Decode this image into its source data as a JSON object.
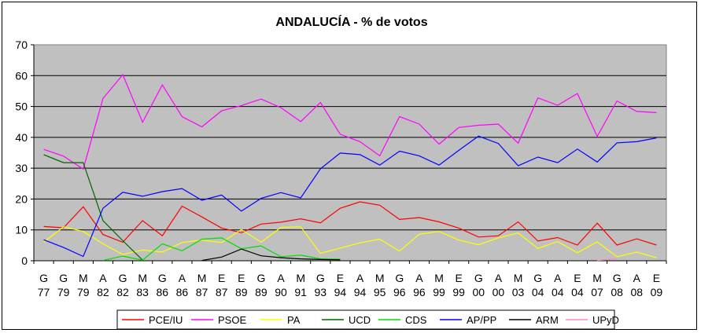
{
  "chart_data": {
    "type": "line",
    "title": "ANDALUCÍA - % de votos",
    "xlabel": "",
    "ylabel": "",
    "ylim": [
      0,
      70
    ],
    "yticks": [
      0,
      10,
      20,
      30,
      40,
      50,
      60,
      70
    ],
    "grid": true,
    "background": "#c0c0c0",
    "legend_position": "bottom",
    "categories": [
      {
        "letter": "G",
        "year": "77"
      },
      {
        "letter": "G",
        "year": "79"
      },
      {
        "letter": "M",
        "year": "79"
      },
      {
        "letter": "A",
        "year": "82"
      },
      {
        "letter": "G",
        "year": "82"
      },
      {
        "letter": "M",
        "year": "83"
      },
      {
        "letter": "G",
        "year": "86"
      },
      {
        "letter": "A",
        "year": "86"
      },
      {
        "letter": "M",
        "year": "87"
      },
      {
        "letter": "E",
        "year": "87"
      },
      {
        "letter": "E",
        "year": "89"
      },
      {
        "letter": "G",
        "year": "89"
      },
      {
        "letter": "A",
        "year": "90"
      },
      {
        "letter": "M",
        "year": "91"
      },
      {
        "letter": "G",
        "year": "93"
      },
      {
        "letter": "E",
        "year": "94"
      },
      {
        "letter": "A",
        "year": "94"
      },
      {
        "letter": "M",
        "year": "95"
      },
      {
        "letter": "G",
        "year": "96"
      },
      {
        "letter": "A",
        "year": "96"
      },
      {
        "letter": "M",
        "year": "99"
      },
      {
        "letter": "E",
        "year": "99"
      },
      {
        "letter": "G",
        "year": "00"
      },
      {
        "letter": "A",
        "year": "00"
      },
      {
        "letter": "M",
        "year": "03"
      },
      {
        "letter": "G",
        "year": "04"
      },
      {
        "letter": "A",
        "year": "04"
      },
      {
        "letter": "E",
        "year": "04"
      },
      {
        "letter": "M",
        "year": "07"
      },
      {
        "letter": "G",
        "year": "08"
      },
      {
        "letter": "A",
        "year": "08"
      },
      {
        "letter": "E",
        "year": "09"
      }
    ],
    "series": [
      {
        "name": "PCE/IU",
        "color": "#ff0000",
        "values": [
          11.1,
          10.7,
          17.5,
          8.5,
          6.0,
          13.0,
          8.1,
          17.7,
          14.2,
          10.6,
          9.1,
          11.9,
          12.5,
          13.6,
          12.3,
          17.0,
          19.1,
          18.0,
          13.4,
          14.0,
          12.6,
          10.6,
          7.7,
          8.1,
          12.6,
          6.4,
          7.5,
          5.1,
          12.2,
          5.1,
          7.1,
          5.1
        ]
      },
      {
        "name": "PSOE",
        "color": "#ff00ff",
        "values": [
          36.1,
          33.9,
          29.7,
          52.6,
          60.3,
          44.9,
          57.0,
          46.7,
          43.4,
          48.6,
          50.3,
          52.4,
          49.6,
          45.1,
          51.3,
          41.0,
          38.6,
          34.0,
          46.7,
          44.3,
          37.8,
          43.2,
          43.9,
          44.3,
          38.1,
          52.8,
          50.4,
          54.2,
          40.3,
          51.8,
          48.4,
          48.0
        ]
      },
      {
        "name": "PA",
        "color": "#ffff00",
        "values": [
          6.0,
          11.0,
          9.5,
          5.5,
          2.0,
          3.5,
          2.8,
          5.9,
          6.7,
          5.9,
          10.1,
          6.0,
          10.8,
          11.0,
          2.4,
          4.1,
          5.8,
          7.0,
          3.1,
          8.6,
          9.5,
          6.7,
          5.2,
          7.4,
          9.0,
          4.0,
          6.2,
          2.6,
          6.1,
          1.3,
          2.8,
          1.0
        ]
      },
      {
        "name": "UCD",
        "color": "#006400",
        "values": [
          34.4,
          31.8,
          31.8,
          13.0,
          6.5,
          0.2,
          null,
          null,
          null,
          null,
          null,
          null,
          null,
          null,
          null,
          null,
          null,
          null,
          null,
          null,
          null,
          null,
          null,
          null,
          null,
          null,
          null,
          null,
          null,
          null,
          null,
          null
        ]
      },
      {
        "name": "CDS",
        "color": "#00dd00",
        "values": [
          null,
          null,
          null,
          0.1,
          1.5,
          0.2,
          5.5,
          3.2,
          7.0,
          7.4,
          3.9,
          4.8,
          1.3,
          1.8,
          0.6,
          0.5,
          null,
          null,
          null,
          null,
          null,
          null,
          null,
          null,
          null,
          null,
          null,
          null,
          null,
          null,
          null,
          null
        ]
      },
      {
        "name": "AP/PP",
        "color": "#0000ff",
        "values": [
          6.8,
          4.3,
          1.4,
          17.0,
          22.2,
          20.9,
          22.4,
          23.4,
          19.6,
          21.3,
          16.1,
          20.2,
          22.1,
          20.4,
          29.8,
          34.9,
          34.4,
          31.0,
          35.5,
          34.0,
          31.0,
          35.8,
          40.4,
          38.0,
          30.8,
          33.6,
          31.8,
          36.2,
          32.0,
          38.2,
          38.6,
          39.8
        ]
      },
      {
        "name": "ARM",
        "color": "#000000",
        "values": [
          null,
          null,
          null,
          null,
          null,
          null,
          null,
          null,
          0.1,
          1.2,
          3.8,
          1.6,
          1.0,
          0.6,
          0.4,
          0.3,
          null,
          null,
          null,
          null,
          null,
          null,
          null,
          null,
          null,
          null,
          null,
          null,
          null,
          null,
          null,
          null
        ]
      },
      {
        "name": "UPyD",
        "color": "#ff88cc",
        "values": [
          null,
          null,
          null,
          null,
          null,
          null,
          null,
          null,
          null,
          null,
          null,
          null,
          null,
          null,
          null,
          null,
          null,
          null,
          null,
          null,
          null,
          null,
          null,
          null,
          null,
          null,
          null,
          null,
          0.1,
          0.6,
          null,
          null
        ]
      }
    ]
  }
}
